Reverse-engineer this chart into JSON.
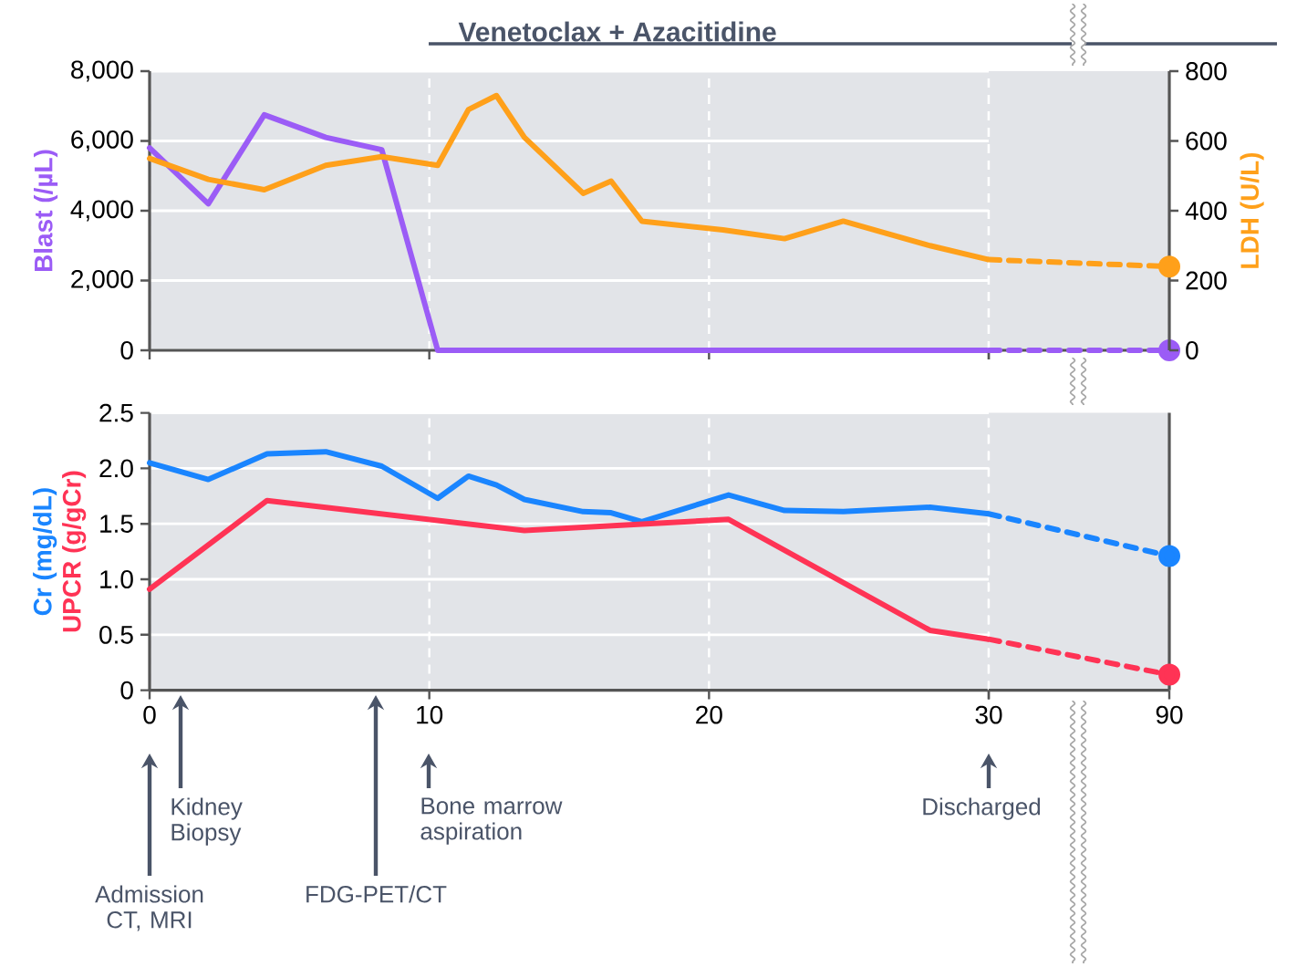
{
  "chart_data": [
    {
      "type": "line",
      "ylabel": "Blast (/µL)",
      "xlim": [
        0,
        30
      ],
      "xticks": [
        0,
        10,
        20,
        30
      ],
      "ylim": [
        0,
        8000
      ],
      "yticks": [
        0,
        {
          "value": 2000,
          "label": "2,000"
        },
        {
          "value": 4000,
          "label": "4,000"
        },
        {
          "value": 6000,
          "label": "6,000"
        },
        {
          "value": 8000,
          "label": "8,000"
        }
      ],
      "y2lim": [
        0,
        800
      ],
      "grid": true,
      "tick_labels": "y",
      "annotations": [
        "Venetoclax + Azacitidine"
      ],
      "series": [
        {
          "color": "#9b5cf6",
          "line_style": "solid",
          "x": [
            0,
            2.1,
            4.1,
            6.3,
            8.3,
            10.3,
            30
          ],
          "values": [
            5800,
            4200,
            6750,
            6100,
            5750,
            0,
            0
          ]
        },
        {
          "color": "#ffa01a",
          "line_style": "solid",
          "axis": "y2",
          "x": [
            0,
            2.1,
            4.1,
            6.3,
            8.3,
            10.3,
            11.4,
            12.4,
            13.4,
            15.5,
            16.5,
            17.6,
            20.5,
            22.7,
            24.8,
            27.9,
            30
          ],
          "values": [
            550,
            490,
            460,
            530,
            555,
            530,
            690,
            730,
            610,
            450,
            485,
            370,
            345,
            320,
            370,
            300,
            260
          ]
        }
      ]
    },
    {
      "type": "line",
      "y2label": "LDH (U/L)",
      "xlim": [
        30,
        90
      ],
      "xticks": [
        30,
        90
      ],
      "ylim": [
        0,
        8000
      ],
      "y2lim": [
        0,
        800
      ],
      "y2ticks": [
        0,
        200,
        400,
        600,
        800
      ],
      "grid": true,
      "tick_labels": "y",
      "series": [
        {
          "color": "#9b5cf6",
          "line_style": "dashed",
          "marker": "circle",
          "x": [
            30,
            90
          ],
          "values": [
            0,
            0
          ]
        },
        {
          "color": "#ffa01a",
          "line_style": "dashed",
          "marker": "circle",
          "axis": "y2",
          "x": [
            30,
            90
          ],
          "values": [
            260,
            240
          ]
        }
      ]
    },
    {
      "type": "line",
      "xlim": [
        0,
        30
      ],
      "xticks": [
        0,
        10,
        20,
        {
          "value": 30,
          "label": null
        }
      ],
      "ylim": [
        0,
        2.5
      ],
      "yticks": [
        0,
        0.5,
        {
          "value": 1,
          "label": "1.0"
        },
        1.5,
        {
          "value": 2,
          "label": "2.0"
        },
        2.5
      ],
      "grid": true,
      "series": [
        {
          "name": "Cr (mg/dL)",
          "color": "#1a85ff",
          "line_style": "solid",
          "x": [
            0,
            2.1,
            4.2,
            6.3,
            8.3,
            10.3,
            11.4,
            12.4,
            13.4,
            15.5,
            16.5,
            17.6,
            20.7,
            22.7,
            24.8,
            27.9,
            30
          ],
          "values": [
            2.05,
            1.9,
            2.13,
            2.15,
            2.02,
            1.73,
            1.93,
            1.85,
            1.72,
            1.61,
            1.6,
            1.52,
            1.76,
            1.62,
            1.61,
            1.65,
            1.59
          ]
        },
        {
          "name": "UPCR (g/gCr)",
          "color": "#ff3355",
          "line_style": "solid",
          "x": [
            0,
            4.2,
            13.4,
            20.7,
            27.9,
            30
          ],
          "values": [
            0.91,
            1.71,
            1.44,
            1.54,
            0.54,
            0.46
          ]
        }
      ],
      "annotations": [
        "Admission CT, MRI",
        "Kidney Biopsy",
        "FDG-PET/CT",
        "Bone marrow aspiration",
        "Discharged"
      ]
    },
    {
      "type": "line",
      "xlim": [
        30,
        90
      ],
      "xticks": [
        30,
        90
      ],
      "ylim": [
        0,
        2.5
      ],
      "grid": true,
      "tick_labels": "x",
      "series": [
        {
          "color": "#1a85ff",
          "line_style": "dashed",
          "marker": "circle",
          "x": [
            30,
            90
          ],
          "values": [
            1.59,
            1.21
          ]
        },
        {
          "color": "#ff3355",
          "line_style": "dashed",
          "marker": "circle",
          "x": [
            30,
            90
          ],
          "values": [
            0.46,
            0.14
          ]
        }
      ]
    }
  ]
}
